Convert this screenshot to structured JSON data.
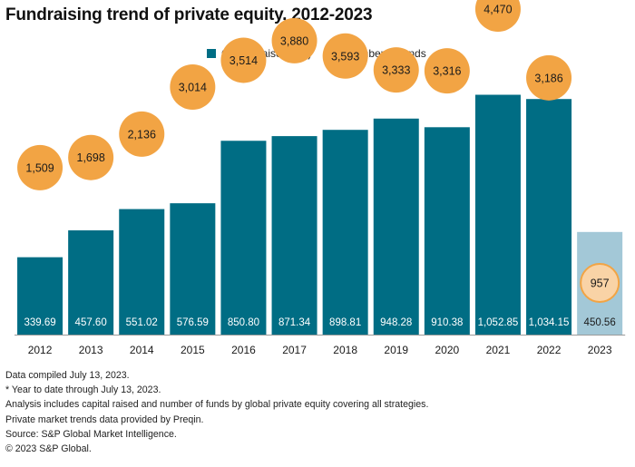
{
  "header": {
    "title": "Fundraising trend of private equity, 2012-2023"
  },
  "legend": {
    "items": [
      {
        "label": "Capital raised ($B)",
        "color": "#006d84",
        "shape": "square"
      },
      {
        "label": "Number of funds",
        "color": "#f2a444",
        "shape": "circle"
      }
    ]
  },
  "colors": {
    "bar": "#006d84",
    "bar_ytd": "#a3c8d7",
    "bubble": "#f2a444",
    "bubble_ytd": "#f9d3a6",
    "bubble_ytd_border": "#f2a444"
  },
  "chart_data": {
    "type": "bar",
    "title": "Fundraising trend of private equity, 2012-2023",
    "xlabel": "",
    "ylabel": "",
    "ylim": [
      0,
      1230
    ],
    "categories": [
      "2012",
      "2013",
      "2014",
      "2015",
      "2016",
      "2017",
      "2018",
      "2019",
      "2020",
      "2021",
      "2022",
      "2023"
    ],
    "series": [
      {
        "name": "Capital raised ($B)",
        "values": [
          339.69,
          457.6,
          551.02,
          576.59,
          850.8,
          871.34,
          898.81,
          948.28,
          910.38,
          1052.85,
          1034.15,
          450.56
        ],
        "labels": [
          "339.69",
          "457.60",
          "551.02",
          "576.59",
          "850.80",
          "871.34",
          "898.81",
          "948.28",
          "910.38",
          "1,052.85",
          "1,034.15",
          "450.56"
        ]
      },
      {
        "name": "Number of funds",
        "values": [
          1509,
          1698,
          2136,
          3014,
          3514,
          3880,
          3593,
          3333,
          3316,
          4470,
          3186,
          957
        ],
        "labels": [
          "1,509",
          "1,698",
          "2,136",
          "3,014",
          "3,514",
          "3,880",
          "3,593",
          "3,333",
          "3,316",
          "4,470",
          "3,186",
          "957"
        ]
      }
    ],
    "ytd_index": 11
  },
  "footer": {
    "notes": [
      "Data compiled July 13, 2023.",
      "* Year to date through July 13, 2023.",
      "Analysis includes capital raised and number of funds by global private equity covering all strategies.",
      "Private market trends data provided by Preqin.",
      "Source: S&P Global Market Intelligence.",
      "© 2023 S&P Global."
    ]
  }
}
